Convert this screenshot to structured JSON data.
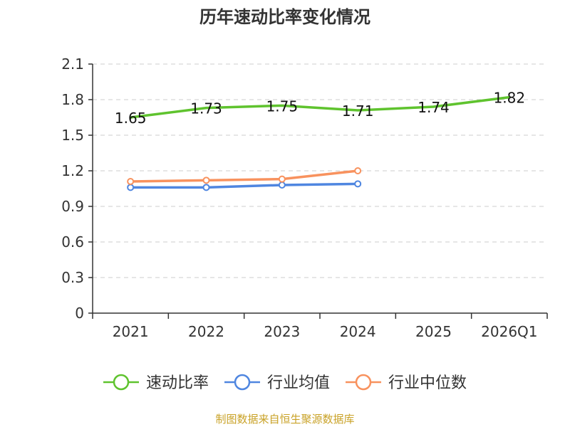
{
  "chart_data": {
    "type": "line",
    "title": "历年速动比率变化情况",
    "categories": [
      "2021",
      "2022",
      "2023",
      "2024",
      "2025",
      "2026Q1"
    ],
    "yticks": [
      "0",
      "0.3",
      "0.6",
      "0.9",
      "1.2",
      "1.5",
      "1.8",
      "2.1"
    ],
    "ylim": [
      0,
      2.1
    ],
    "grid": true,
    "legend_position": "bottom",
    "series": [
      {
        "name": "速动比率",
        "color": "#5fc32e",
        "values": [
          1.65,
          1.73,
          1.75,
          1.71,
          1.74,
          1.82
        ],
        "labels": [
          "1.65",
          "1.73",
          "1.75",
          "1.71",
          "1.74",
          "1.82"
        ],
        "markers": false
      },
      {
        "name": "行业均值",
        "color": "#4f86e0",
        "values": [
          1.06,
          1.06,
          1.08,
          1.09,
          null,
          null
        ],
        "markers": true
      },
      {
        "name": "行业中位数",
        "color": "#f8925e",
        "values": [
          1.11,
          1.12,
          1.13,
          1.2,
          null,
          null
        ],
        "markers": true
      }
    ]
  },
  "source": "制图数据来自恒生聚源数据库"
}
